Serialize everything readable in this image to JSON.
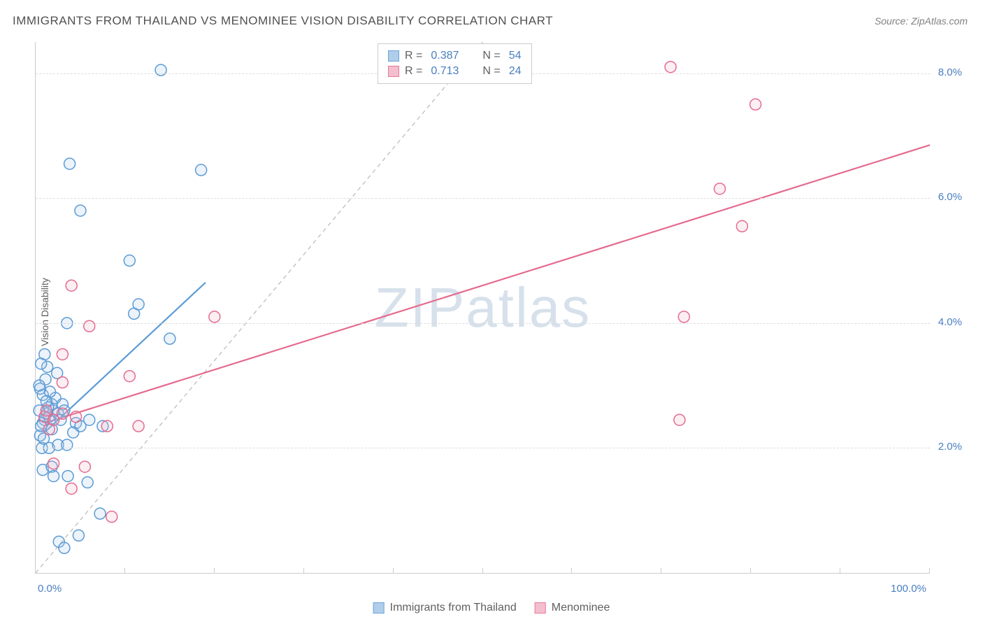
{
  "title": "IMMIGRANTS FROM THAILAND VS MENOMINEE VISION DISABILITY CORRELATION CHART",
  "source": "Source: ZipAtlas.com",
  "ylabel": "Vision Disability",
  "watermark": "ZIPatlas",
  "chart": {
    "type": "scatter",
    "xlim": [
      0,
      100
    ],
    "ylim": [
      0,
      8.5
    ],
    "ytick_step": 2.0,
    "yticks": [
      "2.0%",
      "4.0%",
      "6.0%",
      "8.0%"
    ],
    "ytick_values": [
      2.0,
      4.0,
      6.0,
      8.0
    ],
    "xticks_labels": [
      "0.0%",
      "100.0%"
    ],
    "xticks_label_values": [
      0,
      100
    ],
    "xtick_mark_values": [
      0,
      10,
      20,
      30,
      40,
      50,
      60,
      70,
      80,
      90,
      100
    ],
    "grid_color": "#dddddd",
    "axis_color": "#cccccc",
    "marker_radius": 8,
    "marker_stroke_width": 1.5,
    "marker_fill_opacity": 0.22,
    "trend_line_width": 2.2,
    "identity_line_color": "#b8b8b8",
    "identity_line_dash": "6,5",
    "series": [
      {
        "key": "thailand",
        "label": "Immigrants from Thailand",
        "color_stroke": "#5b9bd5",
        "color_fill": "#a8c8e8",
        "R": "0.387",
        "N": "54",
        "trend": {
          "x1": 1,
          "y1": 2.25,
          "x2": 19,
          "y2": 4.65
        },
        "points": [
          [
            1.0,
            2.45
          ],
          [
            0.8,
            2.4
          ],
          [
            1.5,
            2.5
          ],
          [
            2.0,
            2.6
          ],
          [
            0.5,
            2.2
          ],
          [
            1.2,
            2.55
          ],
          [
            2.5,
            2.55
          ],
          [
            1.8,
            2.7
          ],
          [
            0.6,
            2.35
          ],
          [
            1.4,
            2.65
          ],
          [
            2.2,
            2.8
          ],
          [
            3.0,
            2.7
          ],
          [
            0.4,
            2.6
          ],
          [
            0.8,
            2.85
          ],
          [
            1.6,
            2.9
          ],
          [
            2.8,
            2.45
          ],
          [
            3.2,
            2.6
          ],
          [
            4.5,
            2.4
          ],
          [
            6.0,
            2.45
          ],
          [
            7.5,
            2.35
          ],
          [
            0.5,
            2.95
          ],
          [
            1.1,
            3.1
          ],
          [
            1.3,
            3.3
          ],
          [
            2.4,
            3.2
          ],
          [
            0.6,
            3.35
          ],
          [
            1.0,
            3.5
          ],
          [
            0.4,
            3.0
          ],
          [
            0.7,
            2.0
          ],
          [
            1.5,
            2.0
          ],
          [
            2.5,
            2.05
          ],
          [
            3.5,
            2.05
          ],
          [
            4.2,
            2.25
          ],
          [
            5.0,
            2.35
          ],
          [
            0.8,
            1.65
          ],
          [
            1.8,
            1.7
          ],
          [
            2.0,
            1.55
          ],
          [
            3.6,
            1.55
          ],
          [
            5.8,
            1.45
          ],
          [
            7.2,
            0.95
          ],
          [
            2.6,
            0.5
          ],
          [
            3.2,
            0.4
          ],
          [
            4.8,
            0.6
          ],
          [
            10.5,
            5.0
          ],
          [
            11.0,
            4.15
          ],
          [
            11.5,
            4.3
          ],
          [
            15.0,
            3.75
          ],
          [
            3.5,
            4.0
          ],
          [
            5.0,
            5.8
          ],
          [
            3.8,
            6.55
          ],
          [
            18.5,
            6.45
          ],
          [
            14.0,
            8.05
          ],
          [
            1.8,
            2.3
          ],
          [
            0.9,
            2.15
          ],
          [
            1.2,
            2.75
          ]
        ]
      },
      {
        "key": "menominee",
        "label": "Menominee",
        "color_stroke": "#e56b8e",
        "color_fill": "#f3b8ca",
        "R": "0.713",
        "N": "24",
        "trend": {
          "x1": 1,
          "y1": 2.4,
          "x2": 100,
          "y2": 6.85
        },
        "points": [
          [
            1.0,
            2.5
          ],
          [
            2.0,
            2.45
          ],
          [
            1.5,
            2.3
          ],
          [
            3.0,
            2.55
          ],
          [
            4.5,
            2.5
          ],
          [
            8.0,
            2.35
          ],
          [
            11.5,
            2.35
          ],
          [
            5.5,
            1.7
          ],
          [
            4.0,
            1.35
          ],
          [
            8.5,
            0.9
          ],
          [
            2.0,
            1.75
          ],
          [
            3.0,
            3.05
          ],
          [
            10.5,
            3.15
          ],
          [
            3.0,
            3.5
          ],
          [
            6.0,
            3.95
          ],
          [
            20.0,
            4.1
          ],
          [
            4.0,
            4.6
          ],
          [
            72.0,
            2.45
          ],
          [
            72.5,
            4.1
          ],
          [
            79.0,
            5.55
          ],
          [
            76.5,
            6.15
          ],
          [
            80.5,
            7.5
          ],
          [
            71.0,
            8.1
          ],
          [
            1.2,
            2.6
          ]
        ]
      }
    ],
    "identity_line": {
      "x1": 0,
      "y1": 0,
      "x2": 50,
      "y2": 8.5
    }
  },
  "legend_top": {
    "r_label": "R =",
    "n_label": "N ="
  }
}
